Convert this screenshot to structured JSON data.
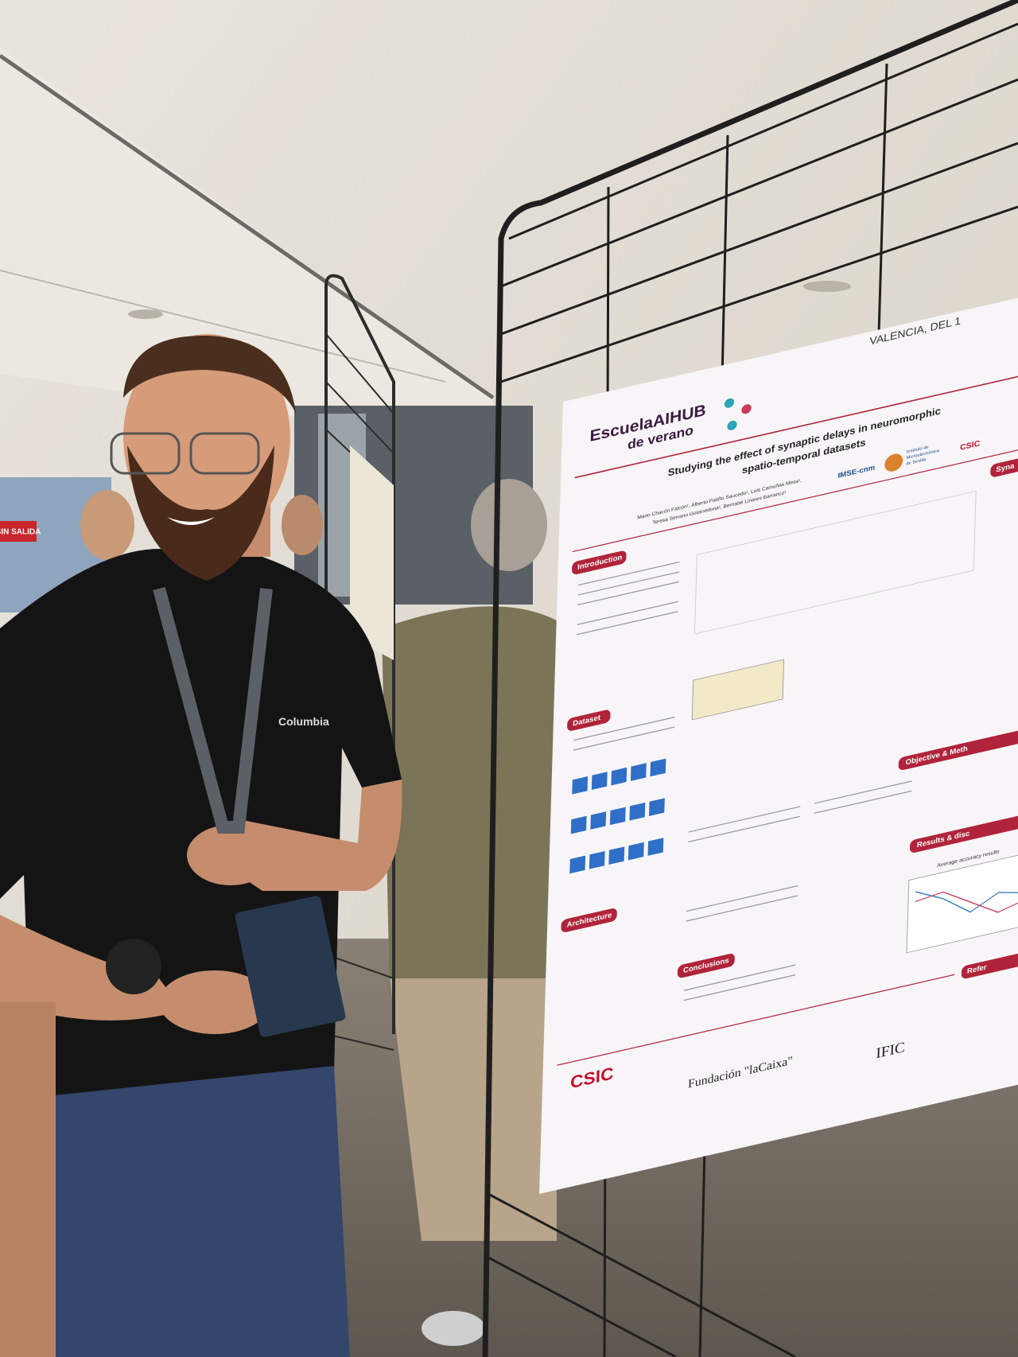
{
  "signage": {
    "exit": "SIN SALIDA"
  },
  "shirt": {
    "brand": "Columbia"
  },
  "poster": {
    "location": "VALENCIA, DEL 1",
    "school": {
      "name": "EscuelaAIHUB",
      "subtitle": "de verano"
    },
    "title": [
      "Studying the effect of synaptic delays in neuromorphic",
      "spatio-temporal datasets"
    ],
    "authors": [
      "Mario Chacón Falcón¹, Alberto Patiño Saucedo¹, Luis Camuñas Mesa¹,",
      "Teresa Serrano Gotarredona¹, Bernabé Linares Barranco¹"
    ],
    "institute": [
      "Instituto de",
      "Microelectrónica",
      "de Sevilla"
    ],
    "logos": [
      "IMSE-cnm",
      "CSIC"
    ],
    "sections": [
      "Introduction",
      "Dataset",
      "Architecture",
      "Conclusions",
      "Syna",
      "Objective & Meth",
      "Results & disc",
      "Refer"
    ],
    "chart_title": "Average accuracy results",
    "sponsors": [
      "CSIC",
      "Fundación \"laCaixa\"",
      "IFIC"
    ]
  }
}
